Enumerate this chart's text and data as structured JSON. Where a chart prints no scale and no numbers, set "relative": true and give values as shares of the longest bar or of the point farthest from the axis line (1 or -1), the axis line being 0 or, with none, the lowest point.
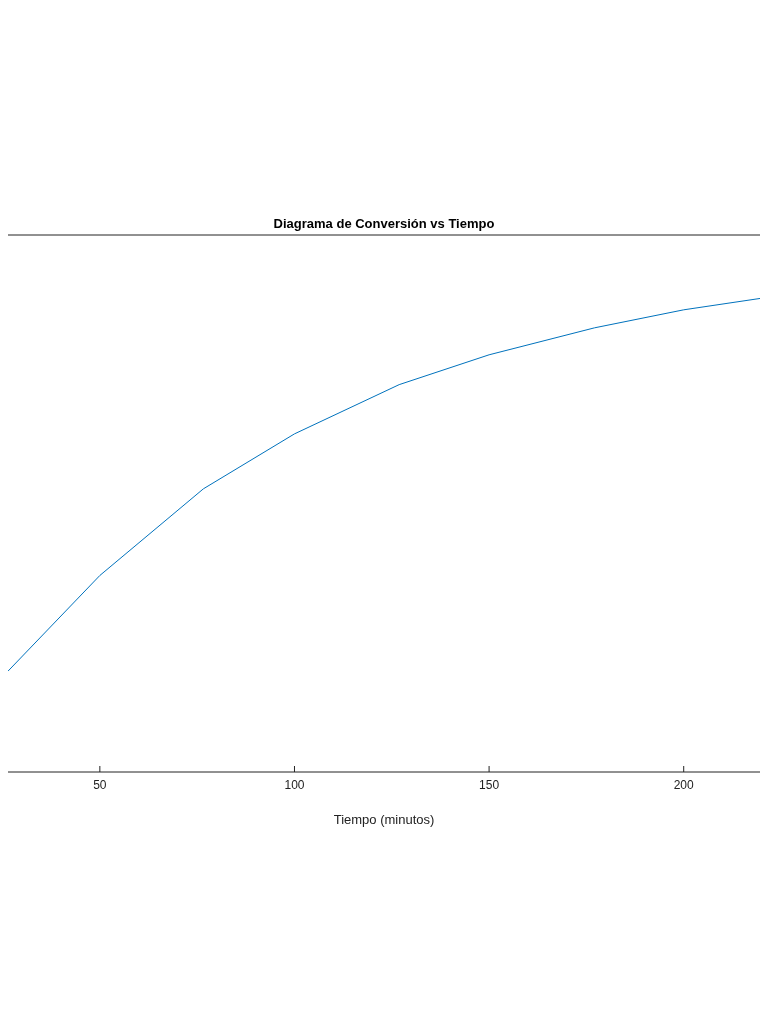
{
  "chart_data": {
    "type": "line",
    "title": "Diagrama de Conversión vs Tiempo",
    "xlabel": "Tiempo (minutos)",
    "x": [
      26.4,
      50,
      76.6,
      100,
      126.9,
      150,
      177.1,
      200,
      219.6
    ],
    "series": [
      {
        "color": "#0072bd",
        "values": [
          0.213,
          0.415,
          0.598,
          0.714,
          0.818,
          0.881,
          0.938,
          0.976,
          1.0
        ]
      }
    ],
    "relative": true,
    "xlim": [
      26.4,
      219.6
    ],
    "xticks": [
      50,
      100,
      150,
      200
    ],
    "tick_labels": "x",
    "grid": false,
    "legend": false,
    "marker": "none",
    "line_style": "solid"
  }
}
